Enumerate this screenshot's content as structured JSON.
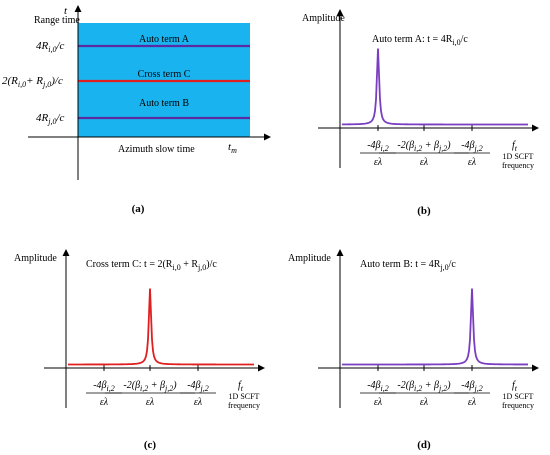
{
  "panels": {
    "a": {
      "y_symbol": "t",
      "y_title": "Range time",
      "x_title": "Azimuth slow time",
      "x_symbol": "t",
      "x_symbol_sub": "m",
      "region_color": "#19b4ef",
      "lines": [
        {
          "name": "Auto term A",
          "color": "#5a2aa0",
          "ylabel_main": "4R",
          "ylabel_sub": "i,0",
          "ylabel_tail": "/c"
        },
        {
          "name": "Cross term C",
          "color": "#e02020",
          "ylabel_main": "2(R",
          "ylabel_sub": "i,0",
          "ylabel_mid": "+ R",
          "ylabel_sub2": "j,0",
          "ylabel_tail": ")/c"
        },
        {
          "name": "Auto term B",
          "color": "#5a2aa0",
          "ylabel_main": "4R",
          "ylabel_sub": "j,0",
          "ylabel_tail": "/c"
        }
      ],
      "caption": "(a)"
    },
    "b": {
      "y_title": "Amplitude",
      "title": "Auto term A:  t = 4R",
      "title_sub": "i,0",
      "title_tail": "/c",
      "color": "#7a3fc0",
      "peak_position": "left",
      "caption": "(b)"
    },
    "c": {
      "y_title": "Amplitude",
      "title": "Cross term C:  t = 2(R",
      "title_sub": "i,0",
      "title_mid": " + R",
      "title_sub2": "j,0",
      "title_tail": ")/c",
      "color": "#e02020",
      "peak_position": "middle",
      "caption": "(c)"
    },
    "d": {
      "y_title": "Amplitude",
      "title": "Auto term B:  t = 4R",
      "title_sub": "j,0",
      "title_tail": "/c",
      "color": "#7a3fc0",
      "peak_position": "right",
      "caption": "(d)"
    }
  },
  "freq_axis": {
    "tick1_num": "-4β",
    "tick1_sub": "i,2",
    "tick2_num": "-2(β",
    "tick2_sub1": "i,2",
    "tick2_mid": " + β",
    "tick2_sub2": "j,2",
    "tick2_tail": ")",
    "tick3_num": "-4β",
    "tick3_sub": "j,2",
    "den": "ελ",
    "axis_symbol": "f",
    "axis_symbol_sub": "t",
    "axis_title_1": "1D SCFT",
    "axis_title_2": "frequency"
  }
}
